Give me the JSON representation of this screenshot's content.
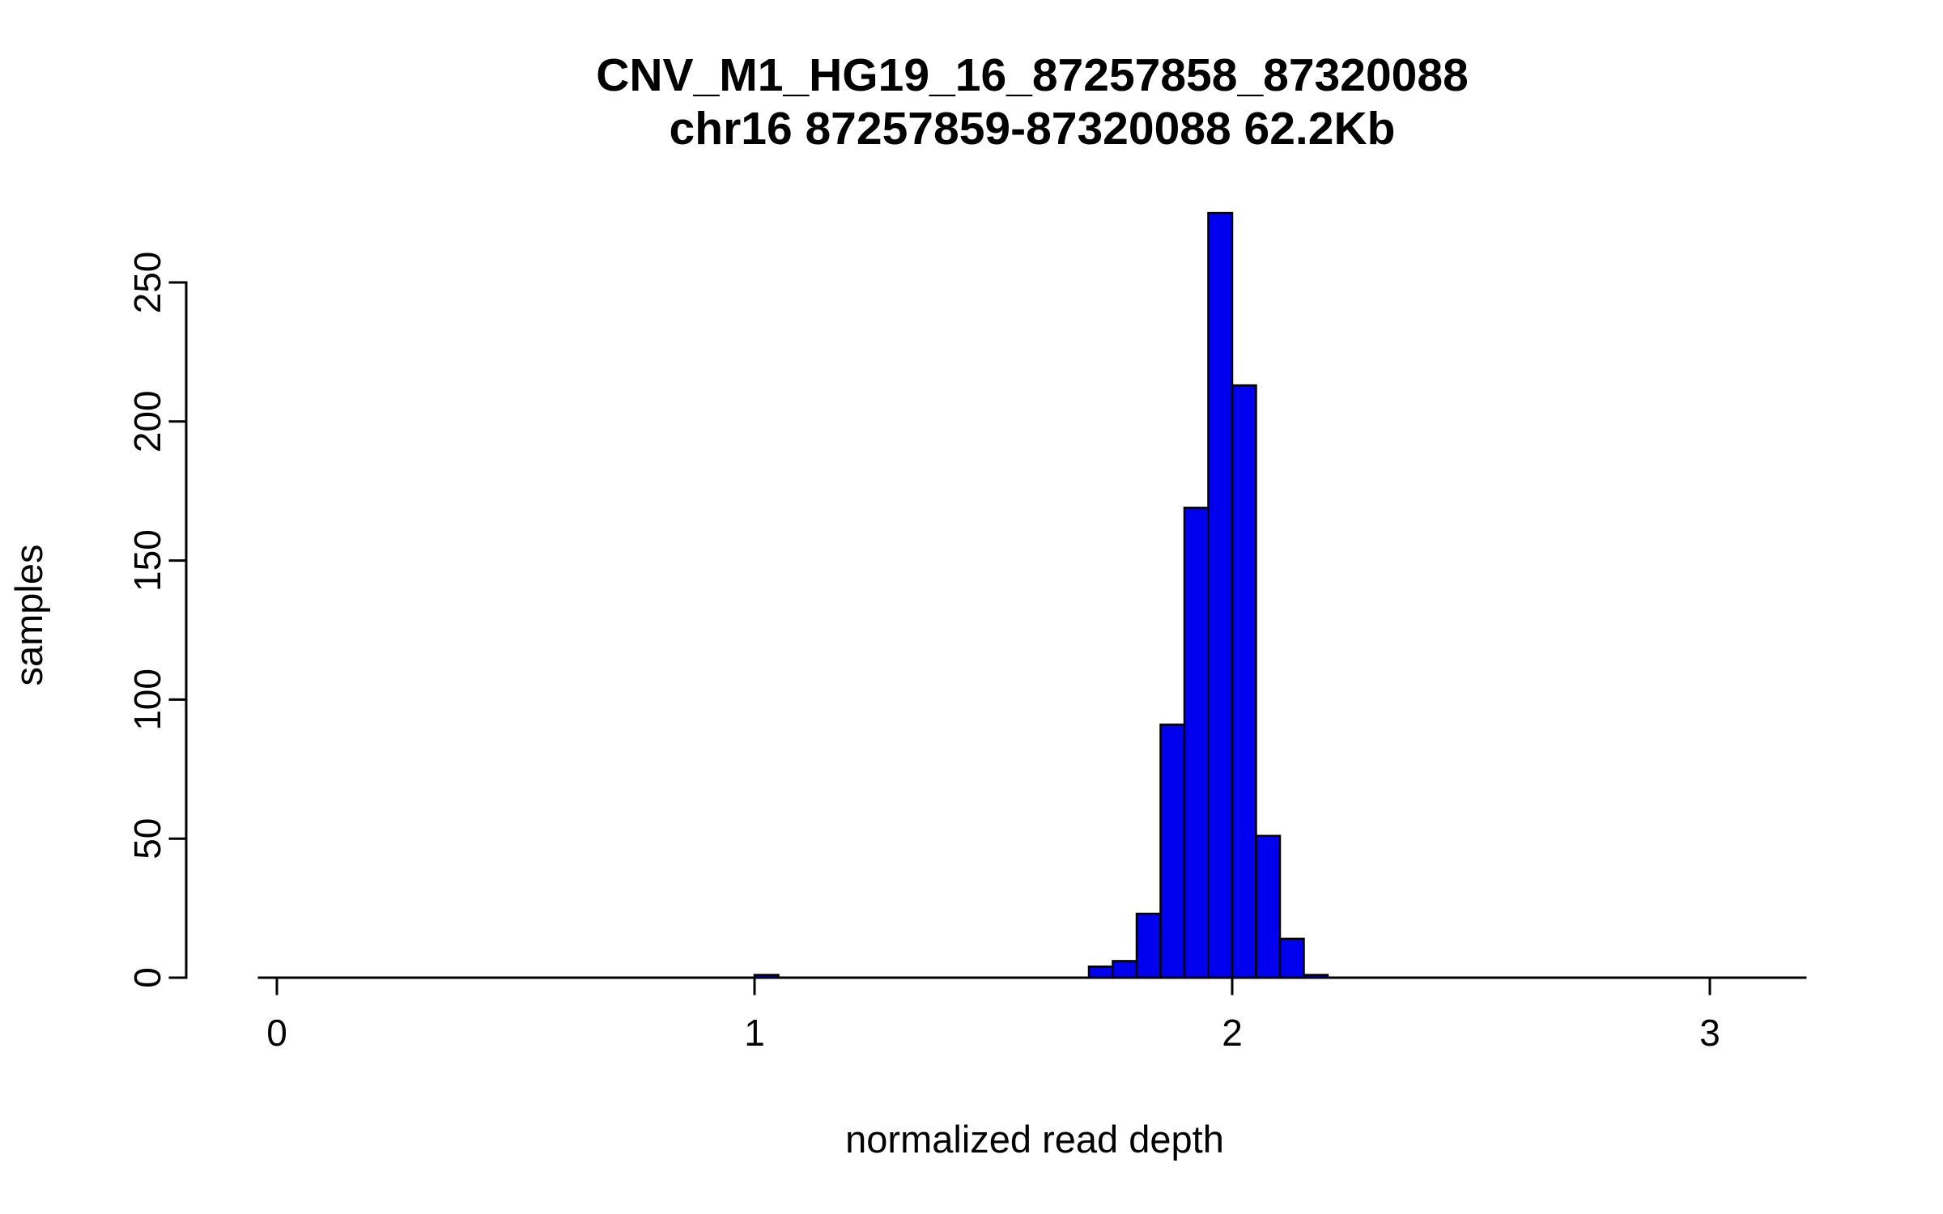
{
  "chart_data": {
    "type": "bar",
    "subtype": "histogram",
    "title": "CNV_M1_HG19_16_87257858_87320088",
    "subtitle": "chr16 87257859-87320088 62.2Kb",
    "xlabel": "normalized read depth",
    "ylabel": "samples",
    "x_ticks": [
      0,
      1,
      2,
      3
    ],
    "y_ticks": [
      0,
      50,
      100,
      150,
      200,
      250
    ],
    "xlim": [
      0,
      3.2
    ],
    "ylim": [
      0,
      275
    ],
    "grid": false,
    "legend": "none",
    "bin_width": 0.05,
    "bar_color": "#0000EE",
    "bar_border_color": "#000000",
    "bins": [
      {
        "x": 1.0,
        "count": 1
      },
      {
        "x": 1.7,
        "count": 4
      },
      {
        "x": 1.75,
        "count": 6
      },
      {
        "x": 1.8,
        "count": 23
      },
      {
        "x": 1.85,
        "count": 91
      },
      {
        "x": 1.9,
        "count": 169
      },
      {
        "x": 1.95,
        "count": 275
      },
      {
        "x": 2.0,
        "count": 213
      },
      {
        "x": 2.05,
        "count": 51
      },
      {
        "x": 2.1,
        "count": 14
      },
      {
        "x": 2.15,
        "count": 1
      }
    ]
  }
}
